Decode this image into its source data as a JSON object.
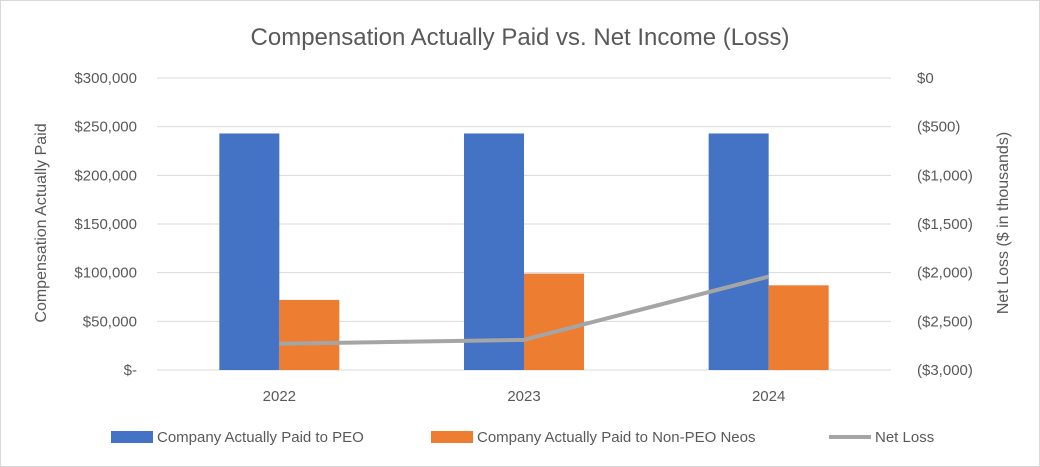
{
  "chart_data": {
    "type": "bar",
    "title": "Compensation  Actually Paid vs. Net Income (Loss)",
    "categories": [
      "2022",
      "2023",
      "2024"
    ],
    "ylabel": "Compensation  Actually Paid",
    "y2label": "Net Loss ($ in thousands)",
    "ylim": [
      0,
      300000
    ],
    "y2lim": [
      -3000,
      0
    ],
    "yticks": [
      {
        "value": 0,
        "label": "$-"
      },
      {
        "value": 50000,
        "label": "$50,000"
      },
      {
        "value": 100000,
        "label": "$100,000"
      },
      {
        "value": 150000,
        "label": "$150,000"
      },
      {
        "value": 200000,
        "label": "$200,000"
      },
      {
        "value": 250000,
        "label": "$250,000"
      },
      {
        "value": 300000,
        "label": "$300,000"
      }
    ],
    "y2ticks": [
      {
        "value": 0,
        "label": "$0"
      },
      {
        "value": -500,
        "label": "($500)"
      },
      {
        "value": -1000,
        "label": "($1,000)"
      },
      {
        "value": -1500,
        "label": "($1,500)"
      },
      {
        "value": -2000,
        "label": "($2,000)"
      },
      {
        "value": -2500,
        "label": "($2,500)"
      },
      {
        "value": -3000,
        "label": "($3,000)"
      }
    ],
    "grid": true,
    "legend_position": "bottom",
    "series": [
      {
        "name": "Company Actually Paid to PEO",
        "type": "bar",
        "axis": "left",
        "color": "#4472c4",
        "values": [
          243000,
          243000,
          243000
        ]
      },
      {
        "name": "Company Actually Paid to Non-PEO Neos",
        "type": "bar",
        "axis": "left",
        "color": "#ed7d31",
        "values": [
          72000,
          99000,
          87000
        ]
      },
      {
        "name": "Net Loss",
        "type": "line",
        "axis": "right",
        "color": "#a5a5a5",
        "values": [
          -2730,
          -2690,
          -2040
        ]
      }
    ]
  }
}
